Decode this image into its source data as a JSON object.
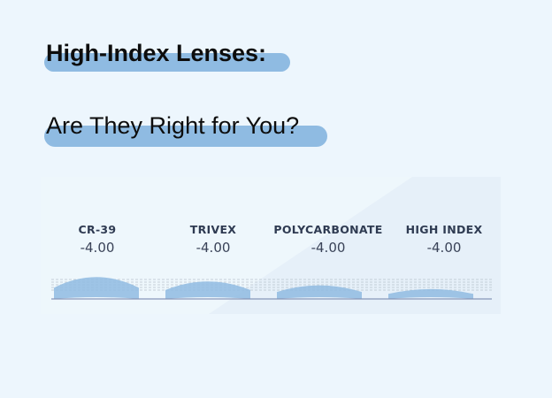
{
  "heading": {
    "line1": "High-Index Lenses:",
    "line2": "Are They Right for You?"
  },
  "colors": {
    "background": "#edf6fd",
    "highlight": "#8fbbe2",
    "lens": "#8fbbe2",
    "label": "#2f3b52"
  },
  "lenses": [
    {
      "name": "CR-39",
      "power": "-4.00",
      "relative_thickness": 1.0
    },
    {
      "name": "TRIVEX",
      "power": "-4.00",
      "relative_thickness": 0.8
    },
    {
      "name": "POLYCARBONATE",
      "power": "-4.00",
      "relative_thickness": 0.62
    },
    {
      "name": "HIGH INDEX",
      "power": "-4.00",
      "relative_thickness": 0.45
    }
  ]
}
